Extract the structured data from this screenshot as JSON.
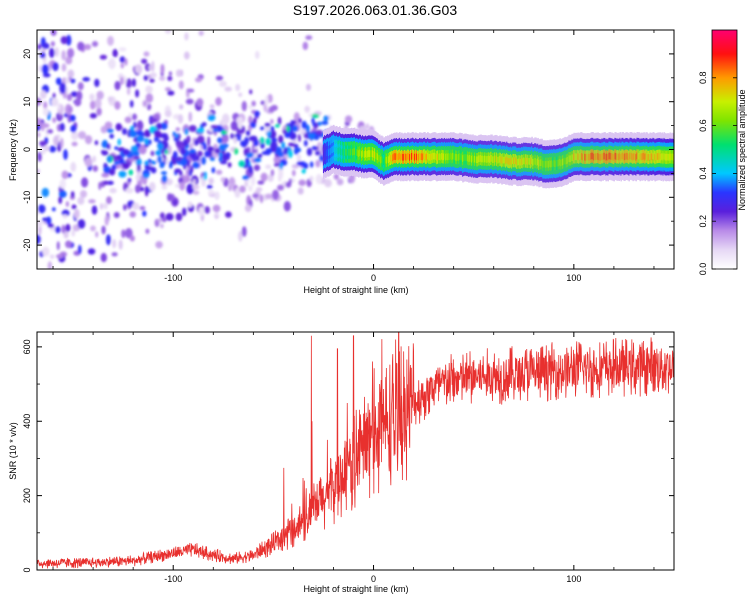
{
  "figure_title": "S197.2026.063.01.36.G03",
  "colors": {
    "snr_line": "#e8302e",
    "spectrum_colormap": [
      "#ffffff",
      "#e6d8f5",
      "#b98be8",
      "#8a2be2",
      "#5a1fdc",
      "#2a36ff",
      "#00c8ff",
      "#00e070",
      "#c8f000",
      "#ff9a00",
      "#ff1010",
      "#ff0070"
    ]
  },
  "chart_data": [
    {
      "type": "heatmap",
      "title": "",
      "xlabel": "Height of straight line (km)",
      "ylabel": "Frequency (Hz)",
      "xlim": [
        -168,
        150
      ],
      "ylim": [
        -25,
        25
      ],
      "x_ticks": [
        -100,
        0,
        100
      ],
      "x_tick_labels": [
        "-100",
        "0",
        "100"
      ],
      "y_ticks": [
        -20,
        -10,
        0,
        10,
        20
      ],
      "y_tick_labels": [
        "-20",
        "-10",
        "0",
        "10",
        "20"
      ],
      "colorbar": {
        "label": "Normalized spectral amplitude",
        "range": [
          0,
          1
        ],
        "ticks": [
          0.0,
          0.2,
          0.4,
          0.6,
          0.8
        ],
        "tick_labels": [
          "0.0",
          "0.2",
          "0.4",
          "0.6",
          "0.8"
        ]
      },
      "ridge": {
        "x": [
          -25,
          -20,
          -15,
          -10,
          -5,
          0,
          5,
          10,
          20,
          30,
          40,
          50,
          60,
          70,
          80,
          85,
          90,
          95,
          100,
          110,
          120,
          130,
          140,
          150
        ],
        "freq": [
          -1,
          0,
          -0.5,
          -0.5,
          -1,
          -1,
          -2.5,
          -1.5,
          -1.5,
          -1.5,
          -1.5,
          -2,
          -2,
          -2.5,
          -2.5,
          -3,
          -3,
          -2.5,
          -1.5,
          -1.5,
          -1.5,
          -1.5,
          -1.5,
          -1.5
        ],
        "amplitude": [
          0.3,
          0.45,
          0.55,
          0.6,
          0.7,
          0.75,
          0.6,
          0.85,
          0.9,
          0.8,
          0.65,
          0.7,
          0.75,
          0.8,
          0.75,
          0.7,
          0.65,
          0.7,
          0.8,
          0.9,
          0.9,
          0.85,
          0.8,
          0.75
        ]
      }
    },
    {
      "type": "line",
      "title": "",
      "xlabel": "Height of straight line (km)",
      "ylabel": "SNR (10 * v/v)",
      "xlim": [
        -168,
        150
      ],
      "ylim": [
        0,
        640
      ],
      "x_ticks": [
        -100,
        0,
        100
      ],
      "x_tick_labels": [
        "-100",
        "0",
        "100"
      ],
      "y_ticks": [
        0,
        200,
        400,
        600
      ],
      "y_tick_labels": [
        "0",
        "200",
        "400",
        "600"
      ],
      "series": [
        {
          "name": "SNR",
          "x": [
            -168,
            -140,
            -120,
            -100,
            -90,
            -80,
            -70,
            -60,
            -50,
            -40,
            -30,
            -25,
            -20,
            -15,
            -10,
            -5,
            0,
            5,
            10,
            15,
            20,
            30,
            40,
            50,
            60,
            70,
            80,
            90,
            100,
            110,
            120,
            130,
            140,
            150
          ],
          "y": [
            18,
            20,
            25,
            45,
            55,
            40,
            30,
            40,
            70,
            110,
            160,
            190,
            220,
            260,
            290,
            330,
            360,
            390,
            410,
            430,
            450,
            490,
            510,
            520,
            520,
            525,
            530,
            535,
            540,
            540,
            545,
            545,
            550,
            545
          ],
          "spikes": [
            {
              "x": -31,
              "y": 630
            },
            {
              "x": -18,
              "y": 595
            },
            {
              "x": -10,
              "y": 630
            },
            {
              "x": 11,
              "y": 620
            }
          ]
        }
      ]
    }
  ]
}
